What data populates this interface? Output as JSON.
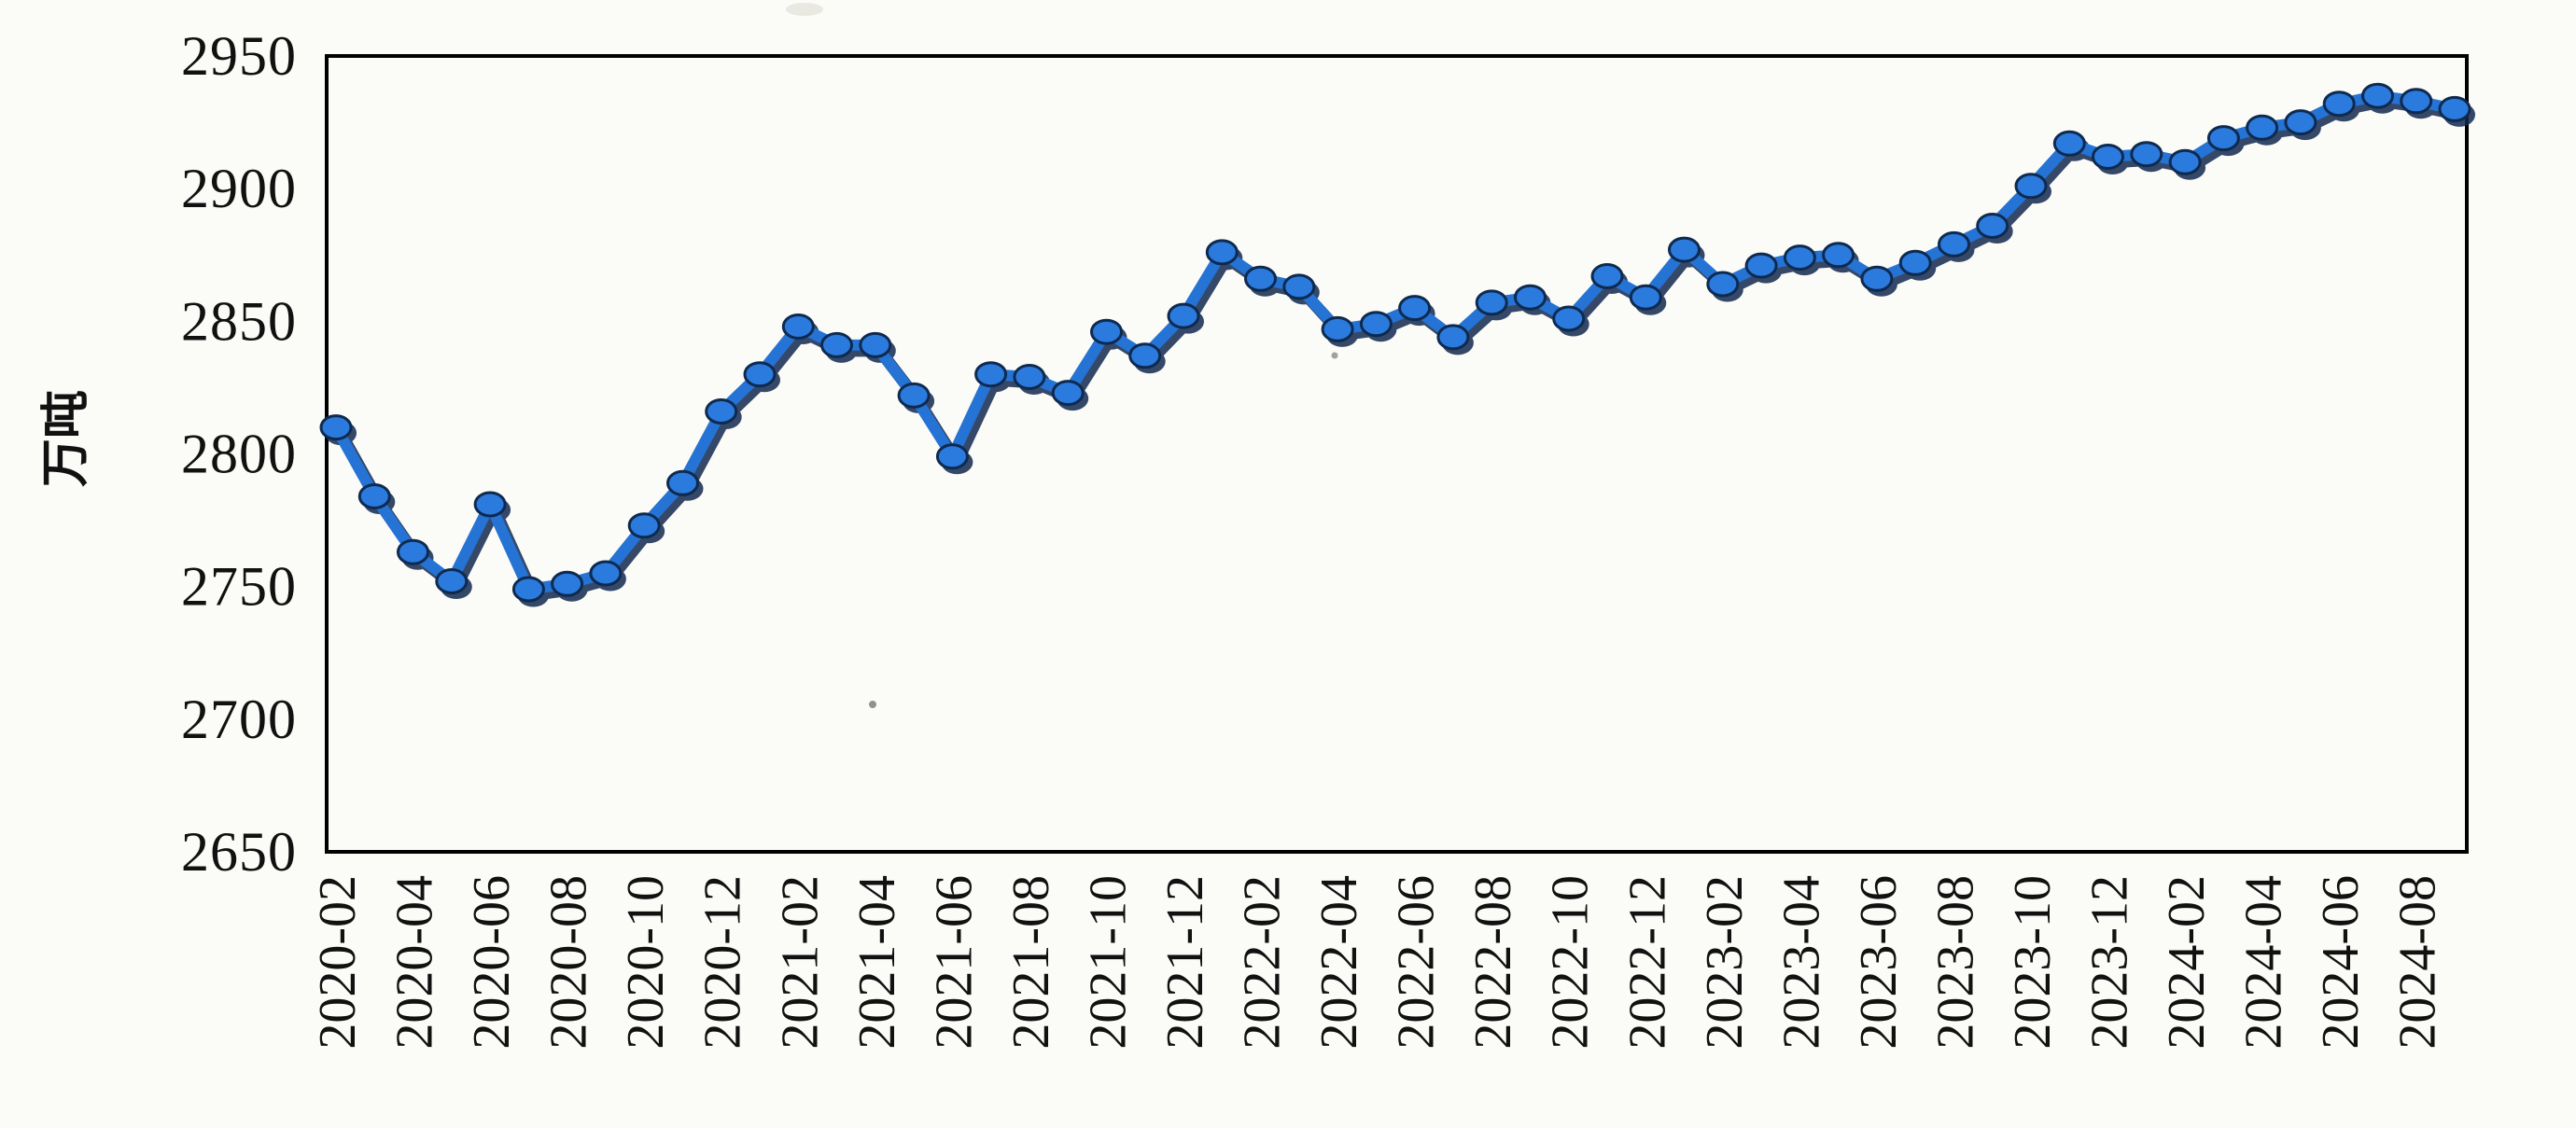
{
  "page": {
    "background": "#fbfbf8"
  },
  "chart_data": {
    "type": "line",
    "title": "",
    "xlabel": "",
    "ylabel": "万吨",
    "ylim": [
      2650,
      2950
    ],
    "yticks": [
      2650,
      2700,
      2750,
      2800,
      2850,
      2900,
      2950
    ],
    "grid": false,
    "legend": "none",
    "marker": "circle",
    "categories": [
      "2020-02",
      "2020-03",
      "2020-04",
      "2020-05",
      "2020-06",
      "2020-07",
      "2020-08",
      "2020-09",
      "2020-10",
      "2020-11",
      "2020-12",
      "2021-01",
      "2021-02",
      "2021-03",
      "2021-04",
      "2021-05",
      "2021-06",
      "2021-07",
      "2021-08",
      "2021-09",
      "2021-10",
      "2021-11",
      "2021-12",
      "2022-01",
      "2022-02",
      "2022-03",
      "2022-04",
      "2022-05",
      "2022-06",
      "2022-07",
      "2022-08",
      "2022-09",
      "2022-10",
      "2022-11",
      "2022-12",
      "2023-01",
      "2023-02",
      "2023-03",
      "2023-04",
      "2023-05",
      "2023-06",
      "2023-07",
      "2023-08",
      "2023-09",
      "2023-10",
      "2023-11",
      "2023-12",
      "2024-01",
      "2024-02",
      "2024-03",
      "2024-04",
      "2024-05",
      "2024-06",
      "2024-07",
      "2024-08",
      "2024-09"
    ],
    "values": [
      2810,
      2784,
      2763,
      2752,
      2781,
      2749,
      2751,
      2755,
      2773,
      2789,
      2816,
      2830,
      2848,
      2841,
      2841,
      2822,
      2799,
      2830,
      2829,
      2823,
      2846,
      2837,
      2852,
      2876,
      2866,
      2863,
      2847,
      2849,
      2855,
      2844,
      2857,
      2859,
      2851,
      2867,
      2859,
      2877,
      2864,
      2871,
      2874,
      2875,
      2866,
      2872,
      2879,
      2886,
      2901,
      2917,
      2912,
      2913,
      2910,
      2919,
      2923,
      2925,
      2932,
      2935,
      2933,
      2930
    ],
    "x_tick_labels": [
      "2020-02",
      "2020-04",
      "2020-06",
      "2020-08",
      "2020-10",
      "2020-12",
      "2021-02",
      "2021-04",
      "2021-06",
      "2021-08",
      "2021-10",
      "2021-12",
      "2022-02",
      "2022-04",
      "2022-06",
      "2022-08",
      "2022-10",
      "2022-12",
      "2023-02",
      "2023-04",
      "2023-06",
      "2023-08",
      "2023-10",
      "2023-12",
      "2024-02",
      "2024-04",
      "2024-06",
      "2024-08"
    ],
    "x_tick_every": 2,
    "colors": {
      "line": "#2573d4",
      "line_shadow": "#13294f",
      "marker_fill": "#2b7ade",
      "marker_stroke": "#0e2a4f",
      "frame": "#000000",
      "tick_text": "#111111",
      "background": "#fbfbf8"
    }
  }
}
